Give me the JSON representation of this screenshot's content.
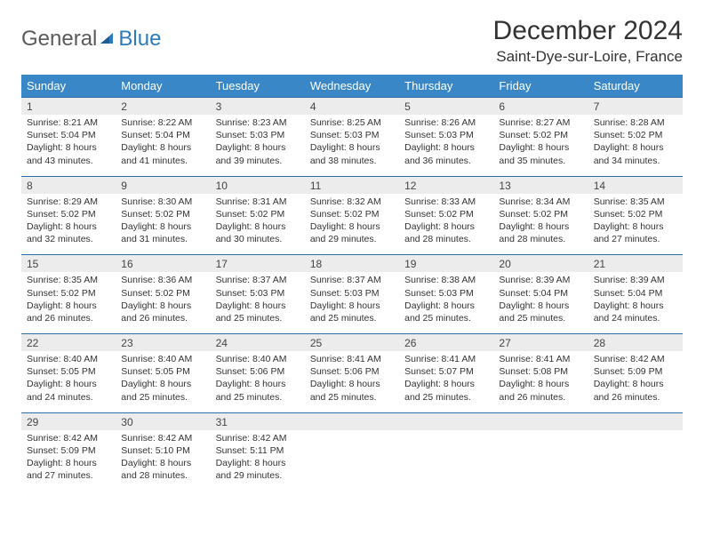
{
  "logo": {
    "text1": "General",
    "text2": "Blue"
  },
  "title": "December 2024",
  "location": "Saint-Dye-sur-Loire, France",
  "colors": {
    "header_bg": "#3a87c7",
    "header_text": "#ffffff",
    "daynum_bg": "#ececec",
    "border": "#2b6fa8",
    "logo_gray": "#5a5a5a",
    "logo_blue": "#2b7bbd"
  },
  "day_names": [
    "Sunday",
    "Monday",
    "Tuesday",
    "Wednesday",
    "Thursday",
    "Friday",
    "Saturday"
  ],
  "weeks": [
    [
      {
        "n": "1",
        "sr": "Sunrise: 8:21 AM",
        "ss": "Sunset: 5:04 PM",
        "d1": "Daylight: 8 hours",
        "d2": "and 43 minutes."
      },
      {
        "n": "2",
        "sr": "Sunrise: 8:22 AM",
        "ss": "Sunset: 5:04 PM",
        "d1": "Daylight: 8 hours",
        "d2": "and 41 minutes."
      },
      {
        "n": "3",
        "sr": "Sunrise: 8:23 AM",
        "ss": "Sunset: 5:03 PM",
        "d1": "Daylight: 8 hours",
        "d2": "and 39 minutes."
      },
      {
        "n": "4",
        "sr": "Sunrise: 8:25 AM",
        "ss": "Sunset: 5:03 PM",
        "d1": "Daylight: 8 hours",
        "d2": "and 38 minutes."
      },
      {
        "n": "5",
        "sr": "Sunrise: 8:26 AM",
        "ss": "Sunset: 5:03 PM",
        "d1": "Daylight: 8 hours",
        "d2": "and 36 minutes."
      },
      {
        "n": "6",
        "sr": "Sunrise: 8:27 AM",
        "ss": "Sunset: 5:02 PM",
        "d1": "Daylight: 8 hours",
        "d2": "and 35 minutes."
      },
      {
        "n": "7",
        "sr": "Sunrise: 8:28 AM",
        "ss": "Sunset: 5:02 PM",
        "d1": "Daylight: 8 hours",
        "d2": "and 34 minutes."
      }
    ],
    [
      {
        "n": "8",
        "sr": "Sunrise: 8:29 AM",
        "ss": "Sunset: 5:02 PM",
        "d1": "Daylight: 8 hours",
        "d2": "and 32 minutes."
      },
      {
        "n": "9",
        "sr": "Sunrise: 8:30 AM",
        "ss": "Sunset: 5:02 PM",
        "d1": "Daylight: 8 hours",
        "d2": "and 31 minutes."
      },
      {
        "n": "10",
        "sr": "Sunrise: 8:31 AM",
        "ss": "Sunset: 5:02 PM",
        "d1": "Daylight: 8 hours",
        "d2": "and 30 minutes."
      },
      {
        "n": "11",
        "sr": "Sunrise: 8:32 AM",
        "ss": "Sunset: 5:02 PM",
        "d1": "Daylight: 8 hours",
        "d2": "and 29 minutes."
      },
      {
        "n": "12",
        "sr": "Sunrise: 8:33 AM",
        "ss": "Sunset: 5:02 PM",
        "d1": "Daylight: 8 hours",
        "d2": "and 28 minutes."
      },
      {
        "n": "13",
        "sr": "Sunrise: 8:34 AM",
        "ss": "Sunset: 5:02 PM",
        "d1": "Daylight: 8 hours",
        "d2": "and 28 minutes."
      },
      {
        "n": "14",
        "sr": "Sunrise: 8:35 AM",
        "ss": "Sunset: 5:02 PM",
        "d1": "Daylight: 8 hours",
        "d2": "and 27 minutes."
      }
    ],
    [
      {
        "n": "15",
        "sr": "Sunrise: 8:35 AM",
        "ss": "Sunset: 5:02 PM",
        "d1": "Daylight: 8 hours",
        "d2": "and 26 minutes."
      },
      {
        "n": "16",
        "sr": "Sunrise: 8:36 AM",
        "ss": "Sunset: 5:02 PM",
        "d1": "Daylight: 8 hours",
        "d2": "and 26 minutes."
      },
      {
        "n": "17",
        "sr": "Sunrise: 8:37 AM",
        "ss": "Sunset: 5:03 PM",
        "d1": "Daylight: 8 hours",
        "d2": "and 25 minutes."
      },
      {
        "n": "18",
        "sr": "Sunrise: 8:37 AM",
        "ss": "Sunset: 5:03 PM",
        "d1": "Daylight: 8 hours",
        "d2": "and 25 minutes."
      },
      {
        "n": "19",
        "sr": "Sunrise: 8:38 AM",
        "ss": "Sunset: 5:03 PM",
        "d1": "Daylight: 8 hours",
        "d2": "and 25 minutes."
      },
      {
        "n": "20",
        "sr": "Sunrise: 8:39 AM",
        "ss": "Sunset: 5:04 PM",
        "d1": "Daylight: 8 hours",
        "d2": "and 25 minutes."
      },
      {
        "n": "21",
        "sr": "Sunrise: 8:39 AM",
        "ss": "Sunset: 5:04 PM",
        "d1": "Daylight: 8 hours",
        "d2": "and 24 minutes."
      }
    ],
    [
      {
        "n": "22",
        "sr": "Sunrise: 8:40 AM",
        "ss": "Sunset: 5:05 PM",
        "d1": "Daylight: 8 hours",
        "d2": "and 24 minutes."
      },
      {
        "n": "23",
        "sr": "Sunrise: 8:40 AM",
        "ss": "Sunset: 5:05 PM",
        "d1": "Daylight: 8 hours",
        "d2": "and 25 minutes."
      },
      {
        "n": "24",
        "sr": "Sunrise: 8:40 AM",
        "ss": "Sunset: 5:06 PM",
        "d1": "Daylight: 8 hours",
        "d2": "and 25 minutes."
      },
      {
        "n": "25",
        "sr": "Sunrise: 8:41 AM",
        "ss": "Sunset: 5:06 PM",
        "d1": "Daylight: 8 hours",
        "d2": "and 25 minutes."
      },
      {
        "n": "26",
        "sr": "Sunrise: 8:41 AM",
        "ss": "Sunset: 5:07 PM",
        "d1": "Daylight: 8 hours",
        "d2": "and 25 minutes."
      },
      {
        "n": "27",
        "sr": "Sunrise: 8:41 AM",
        "ss": "Sunset: 5:08 PM",
        "d1": "Daylight: 8 hours",
        "d2": "and 26 minutes."
      },
      {
        "n": "28",
        "sr": "Sunrise: 8:42 AM",
        "ss": "Sunset: 5:09 PM",
        "d1": "Daylight: 8 hours",
        "d2": "and 26 minutes."
      }
    ],
    [
      {
        "n": "29",
        "sr": "Sunrise: 8:42 AM",
        "ss": "Sunset: 5:09 PM",
        "d1": "Daylight: 8 hours",
        "d2": "and 27 minutes."
      },
      {
        "n": "30",
        "sr": "Sunrise: 8:42 AM",
        "ss": "Sunset: 5:10 PM",
        "d1": "Daylight: 8 hours",
        "d2": "and 28 minutes."
      },
      {
        "n": "31",
        "sr": "Sunrise: 8:42 AM",
        "ss": "Sunset: 5:11 PM",
        "d1": "Daylight: 8 hours",
        "d2": "and 29 minutes."
      },
      null,
      null,
      null,
      null
    ]
  ]
}
